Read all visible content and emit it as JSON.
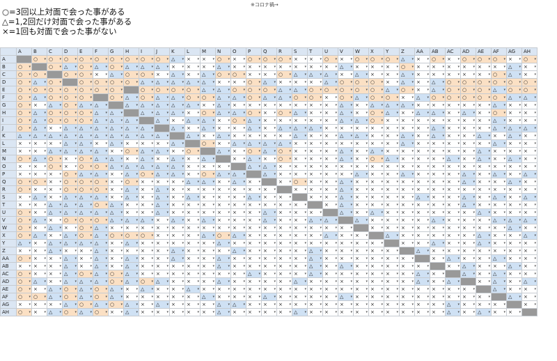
{
  "legend": {
    "line1": "○=3回以上対面で会った事がある",
    "line2": "△=1,2回だけ対面で会った事がある",
    "line3": "×=1回も対面で会った事がない"
  },
  "note": "※コロナ禍→",
  "labels": [
    "A",
    "B",
    "C",
    "D",
    "E",
    "F",
    "G",
    "H",
    "I",
    "J",
    "K",
    "L",
    "M",
    "N",
    "O",
    "P",
    "Q",
    "R",
    "S",
    "T",
    "U",
    "V",
    "W",
    "X",
    "Y",
    "Z",
    "AA",
    "AB",
    "AC",
    "AD",
    "AE",
    "AF",
    "AG",
    "AH"
  ],
  "symbols": {
    "o": "○",
    "t": "△",
    "x": "×",
    "d": ""
  },
  "dropdown_glyph": "▾",
  "colors": {
    "circle_bg": "#fbe0c4",
    "triangle_bg": "#cfe1f4",
    "cross_bg": "#ffffff",
    "diagonal_bg": "#999999",
    "header_bg": "#dbe6f3"
  },
  "rows": [
    "doooooooootxxoxoooxxoxoootxoxoooxo",
    "odotototttxxxtxxxxxxxtxxxoxxxxxxtx",
    "oodooxtooxtxtooxxotttxtxxtxxxxxotx",
    "otodooootttttxxotxxxtoooxtxtoooooo",
    "ooooooodoooottooottoooootoxtoootoo",
    "otooodotottoottottooxotooxtooooott",
    "oxtottdtttttxtxxxxxxxtxtttxxxxxtxx",
    "otooottdtttxottoxotxxtxotxttxtxoxx",
    "otoootttdtxttxotxxxxxttoxxxxxxxtxx",
    "otxttttttdtxtxxtxtttxxxxxxxtxxxttt",
    "ttttttttttdtxtxxxxtxxttxxtxtxxtxtx",
    "xxxttxtxxxtdoxttttxxxxxxxtxxxxxtxx",
    "xxttttxottxodtxotoxxxtxtxxxxxxtxxx",
    "otoxottxtxtxtdxtxoxxxtxotxxxtxtxtx",
    "xxoxootttttxxxdttxxxxxxxxxxxxxxxxx",
    "xxxottxtottxottdtxxxxxtxxtxxxtxtxt",
    "ooxoooxoxxxttxtxdxoxxtxxxxxxxtxxtx",
    "oxxoooxtxtxxxxxxxdxxxtxxxxxxxxxxxx",
    "xtxtttxtxtxtxxxtxxdxxtxxxxtxxtxtxt",
    "xxtttotxxtxxxxxxxxxdxtxxxxxxxtxxxx",
    "oxtttttxxtxxxxxxtxxxdtxtxxxxxxtxxx",
    "otxoootttxtxtxxxtxxttdtxxxxtxxxttt",
    "oxtxotxxxxxxxxxxxxxxxxdxxxxxxxxxtx",
    "otxtotoooxxxtotxxxxxtxxdtxxxxxtxxt",
    "txttttxtxxxxxtxxxxxxxxxxdxxtxxtxxx",
    "xxtxxtxxxxtxxxtxxxxtxxxxxdtxxxxxxx",
    "oxxtxtxtxxtxxtxxxxxtxxxxxxdxtxxtxx",
    "xxxtxtxtxxxxxtxxxxxtxtxxxxxdxtxxtx",
    "oxxtototxxxxxxxtxxxtxxxxxxtxdtxtxx",
    "otxtttototxxxtxxxxtxxxxxxxtxtdxtxt",
    "oxtototxtxxtxxxxxxxxxxxxxxxxxxdtxx",
    "ootototxxxxxtxxxtxxxxtxxxxxxxxxdtx",
    "xxxtototxtxxxttxxxxxxxxxxxxxtxxxdx",
    "oxtotoxtxxxxxtxxxxtxxxxxxxxxtxtxxd"
  ]
}
